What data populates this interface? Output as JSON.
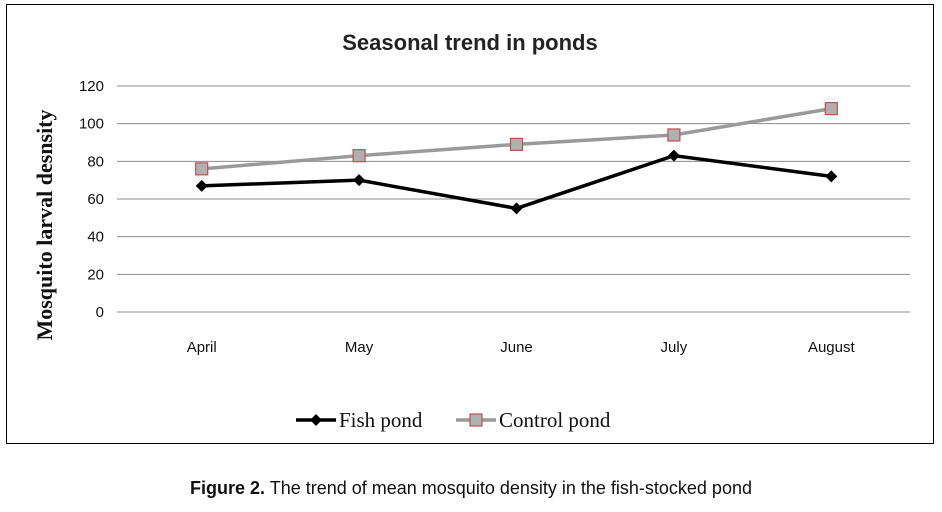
{
  "chart_data": {
    "type": "line",
    "title": "Seasonal trend in ponds",
    "xlabel": "",
    "ylabel": "Mosquito larval desnsity",
    "categories": [
      "April",
      "May",
      "June",
      "July",
      "August"
    ],
    "ylim": [
      0,
      120
    ],
    "yticks": [
      0,
      20,
      40,
      60,
      80,
      100,
      120
    ],
    "grid": true,
    "legend_position": "bottom",
    "series": [
      {
        "name": "Fish pond",
        "values": [
          67,
          70,
          55,
          83,
          72
        ],
        "color": "#000000",
        "marker": "diamond"
      },
      {
        "name": "Control pond",
        "values": [
          76,
          83,
          89,
          94,
          108
        ],
        "color": "#9a9a9a",
        "marker": "square",
        "marker_fill": "#b0b0b0",
        "marker_edge": "#c0504d"
      }
    ]
  },
  "caption": {
    "label": "Figure 2.",
    "text": "The trend of mean mosquito density in the fish-stocked pond"
  }
}
